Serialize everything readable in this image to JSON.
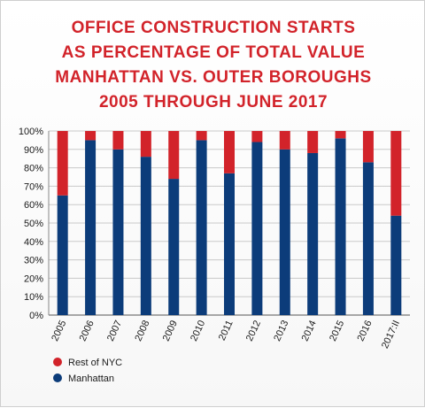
{
  "chart_data": {
    "type": "bar",
    "stacked": true,
    "title_lines": [
      "OFFICE CONSTRUCTION STARTS",
      "AS PERCENTAGE OF TOTAL VALUE",
      "MANHATTAN VS. OUTER BOROUGHS",
      "2005 THROUGH JUNE 2017"
    ],
    "categories": [
      "2005",
      "2006",
      "2007",
      "2008",
      "2009",
      "2010",
      "2011",
      "2012",
      "2013",
      "2014",
      "2015",
      "2016",
      "2017:II"
    ],
    "series": [
      {
        "name": "Manhattan",
        "color": "#0c3c7a",
        "values": [
          65,
          95,
          90,
          86,
          74,
          95,
          77,
          94,
          90,
          88,
          96,
          83,
          54
        ]
      },
      {
        "name": "Rest of NYC",
        "color": "#d2232a",
        "values": [
          35,
          5,
          10,
          14,
          26,
          5,
          23,
          6,
          10,
          12,
          4,
          17,
          46
        ]
      }
    ],
    "yticks": [
      "0%",
      "10%",
      "20%",
      "30%",
      "40%",
      "50%",
      "60%",
      "70%",
      "80%",
      "90%",
      "100%"
    ],
    "ylim": [
      0,
      100
    ],
    "grid": true,
    "legend": {
      "position": "bottom-left",
      "entries": [
        {
          "label": "Rest of NYC",
          "color": "#d2232a"
        },
        {
          "label": "Manhattan",
          "color": "#0c3c7a"
        }
      ]
    }
  }
}
